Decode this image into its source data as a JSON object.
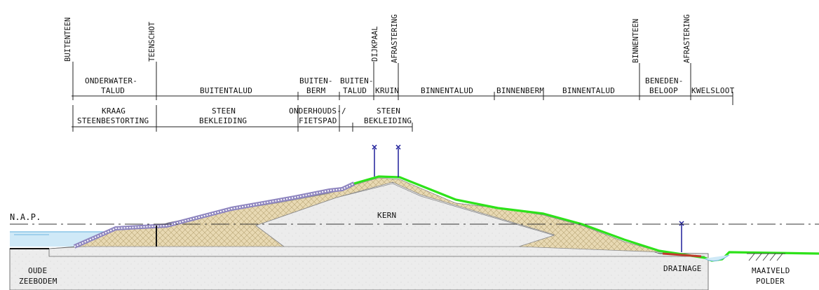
{
  "vertical_labels": {
    "buitenteen": "BUITENTEEN",
    "teenschot": "TEENSCHOT",
    "dijkpaal": "DIJKPAAL",
    "afrastering_left": "AFRASTERING",
    "binnenteen": "BINNENTEEN",
    "afrastering_right": "AFRASTERING"
  },
  "row1": {
    "onderwatertalud": [
      "ONDERWATER-",
      "TALUD"
    ],
    "buitentalud": "BUITENTALUD",
    "buitenberm": [
      "BUITEN-",
      "BERM"
    ],
    "buitentalud2": [
      "BUITEN-",
      "TALUD"
    ],
    "kruin": "KRUIN",
    "binnentalud1": "BINNENTALUD",
    "binnenberm": "BINNENBERM",
    "binnentalud2": "BINNENTALUD",
    "benedenbeloop": [
      "BENEDEN-",
      "BELOOP"
    ],
    "kwelsloot": "KWELSLOOT"
  },
  "row2": {
    "kraag": [
      "KRAAG",
      "STEENBESTORTING"
    ],
    "steen": [
      "STEEN",
      "BEKLEIDING"
    ],
    "onderhoudspad": [
      "ONDERHOUDS-/",
      "FIETSPAD"
    ],
    "steen2": [
      "STEEN",
      "BEKLEIDING"
    ]
  },
  "section_labels": {
    "nap": "N.A.P.",
    "kern": "KERN",
    "drainage": "DRAINAGE",
    "oude_zeebodem": [
      "OUDE",
      "ZEEBODEM"
    ],
    "maaiveld_polder": [
      "MAAIVELD",
      "POLDER"
    ]
  },
  "colors": {
    "core_fill": "#ececec",
    "clay_fill": "#e6d7b0",
    "grass": "#2ee21a",
    "revetment": "#8f86c0",
    "water": "#bfe3f5",
    "pole": "#1f1f9a",
    "drainage": "#c0392b"
  }
}
